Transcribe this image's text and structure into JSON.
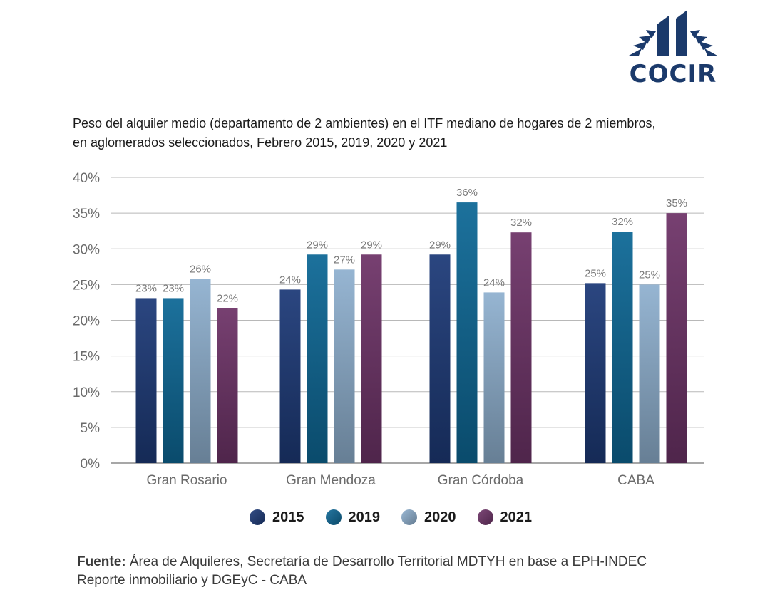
{
  "logo": {
    "text": "COCIR"
  },
  "chart_data": {
    "type": "bar",
    "title_lines": [
      "Peso del alquiler medio (departamento de 2 ambientes) en el ITF mediano de hogares de 2 miembros,",
      "en aglomerados seleccionados, Febrero 2015, 2019, 2020 y 2021"
    ],
    "categories": [
      "Gran Rosario",
      "Gran Mendoza",
      "Gran Córdoba",
      "CABA"
    ],
    "series": [
      {
        "name": "2015",
        "color": "#1d3a78",
        "values": [
          23,
          24,
          29,
          25
        ]
      },
      {
        "name": "2019",
        "color": "#0e6896",
        "values": [
          23,
          29,
          36,
          32
        ]
      },
      {
        "name": "2020",
        "color": "#8fb0cf",
        "values": [
          26,
          27,
          24,
          25
        ]
      },
      {
        "name": "2021",
        "color": "#6e3468",
        "values": [
          22,
          29,
          32,
          35
        ]
      }
    ],
    "plot_values": [
      [
        23.1,
        24.3,
        29.2,
        25.2
      ],
      [
        23.1,
        29.2,
        36.5,
        32.4
      ],
      [
        25.8,
        27.1,
        23.9,
        25.0
      ],
      [
        21.7,
        29.2,
        32.3,
        35.0
      ]
    ],
    "data_labels": [
      [
        "23%",
        "24%",
        "29%",
        "25%"
      ],
      [
        "23%",
        "29%",
        "36%",
        "32%"
      ],
      [
        "26%",
        "27%",
        "24%",
        "25%"
      ],
      [
        "22%",
        "29%",
        "32%",
        "35%"
      ]
    ],
    "y_ticks": [
      "0%",
      "5%",
      "10%",
      "15%",
      "20%",
      "25%",
      "30%",
      "35%",
      "40%"
    ],
    "ylim": [
      0,
      40
    ],
    "grid": true,
    "legend_position": "bottom"
  },
  "source": {
    "label": "Fuente:",
    "line1": " Área de Alquileres, Secretaría de Desarrollo Territorial MDTYH en base a EPH-INDEC",
    "line2": "Reporte inmobiliario y DGEyC - CABA"
  }
}
